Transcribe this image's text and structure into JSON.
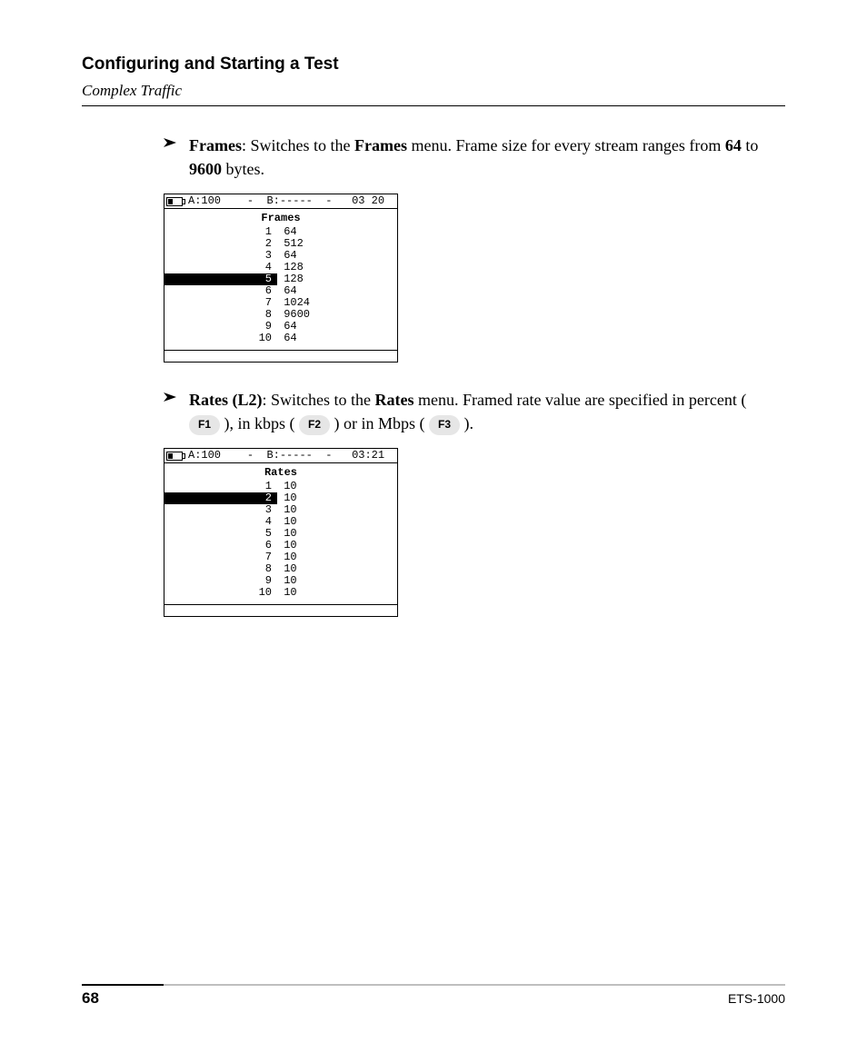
{
  "header": {
    "title": "Configuring and Starting a Test",
    "subtitle": "Complex Traffic"
  },
  "bullets": {
    "frames": {
      "label": "Frames",
      "text_after_label": ": Switches to the ",
      "menu_word": "Frames",
      "text_tail_1": " menu. Frame size for every stream ranges from ",
      "min": "64",
      "to_word": " to ",
      "max": "9600",
      "bytes_word": " bytes."
    },
    "rates": {
      "label": "Rates (L2)",
      "text_after_label": ": Switches to the ",
      "menu_word": "Rates",
      "text_tail_1": " menu. Framed rate value are specified in percent ( ",
      "f1": "F1",
      "mid1": " ), in kbps ( ",
      "f2": "F2",
      "mid2": " ) or in Mbps ( ",
      "f3": "F3",
      "tail": " )."
    }
  },
  "lcd_frames": {
    "status": {
      "a": "A:100",
      "dash1": "-",
      "b": "B:-----",
      "dash2": "-",
      "time": "03 20"
    },
    "title": "Frames",
    "selected_index": 5,
    "rows": [
      {
        "idx": "1",
        "val": "64"
      },
      {
        "idx": "2",
        "val": "512"
      },
      {
        "idx": "3",
        "val": "64"
      },
      {
        "idx": "4",
        "val": "128"
      },
      {
        "idx": "5",
        "val": "128"
      },
      {
        "idx": "6",
        "val": "64"
      },
      {
        "idx": "7",
        "val": "1024"
      },
      {
        "idx": "8",
        "val": "9600"
      },
      {
        "idx": "9",
        "val": "64"
      },
      {
        "idx": "10",
        "val": "64"
      }
    ]
  },
  "lcd_rates": {
    "status": {
      "a": "A:100",
      "dash1": "-",
      "b": "B:-----",
      "dash2": "-",
      "time": "03:21"
    },
    "title": "Rates",
    "selected_index": 2,
    "rows": [
      {
        "idx": "1",
        "val": "10"
      },
      {
        "idx": "2",
        "val": "10"
      },
      {
        "idx": "3",
        "val": "10"
      },
      {
        "idx": "4",
        "val": "10"
      },
      {
        "idx": "5",
        "val": "10"
      },
      {
        "idx": "6",
        "val": "10"
      },
      {
        "idx": "7",
        "val": "10"
      },
      {
        "idx": "8",
        "val": "10"
      },
      {
        "idx": "9",
        "val": "10"
      },
      {
        "idx": "10",
        "val": "10"
      }
    ]
  },
  "footer": {
    "page": "68",
    "model": "ETS-1000"
  }
}
